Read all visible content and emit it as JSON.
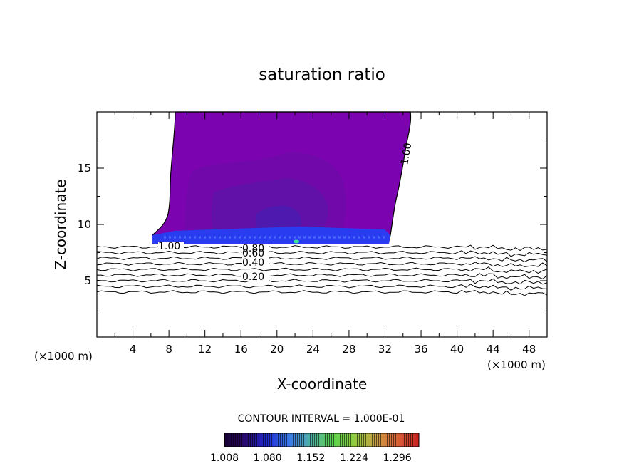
{
  "chart_data": {
    "type": "contour",
    "title": "saturation ratio",
    "xlabel": "X-coordinate",
    "ylabel": "Z-coordinate",
    "x_unit_left": "(×1000 m)",
    "x_unit_right": "(×1000 m)",
    "xlim": [
      0,
      50
    ],
    "ylim": [
      0,
      20
    ],
    "x_ticks": [
      "4",
      "8",
      "12",
      "16",
      "20",
      "24",
      "28",
      "32",
      "36",
      "40",
      "44",
      "48"
    ],
    "y_ticks": [
      "5",
      "10",
      "15"
    ],
    "contour_interval_text": "CONTOUR INTERVAL = 1.000E-01",
    "contour_labels": [
      "1.00",
      "1.00",
      "0.80",
      "0.60",
      "0.40",
      "0.20"
    ],
    "contour_levels": [
      0.2,
      0.3,
      0.4,
      0.5,
      0.6,
      0.7,
      0.8,
      0.9,
      1.0
    ],
    "colorbar": {
      "min": 1.008,
      "max": 1.332,
      "tick_labels": [
        "1.008",
        "1.080",
        "1.152",
        "1.224",
        "1.296"
      ],
      "colors": [
        "#1a0033",
        "#2a0a6e",
        "#1f2bd6",
        "#3a7be8",
        "#4fb0a6",
        "#5bd24f",
        "#8fcf3f",
        "#c8a040",
        "#d9603a",
        "#c82020"
      ]
    },
    "supersaturated_region": {
      "x_range": [
        6,
        35
      ],
      "z_range": [
        8.3,
        20
      ],
      "fill_color": "#7b04b0",
      "base_color": "#2a3cf0",
      "peak_marker_color": "#3ee6a0"
    }
  }
}
